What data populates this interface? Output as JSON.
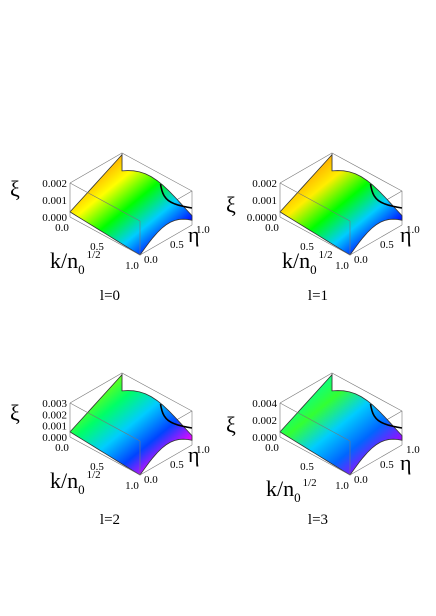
{
  "chart_data": [
    {
      "type": "surface3d",
      "panel_label": "l=0",
      "xlabel_main": "k/n",
      "xlabel_sub": "0",
      "xlabel_sup": "1/2",
      "ylabel": "η",
      "zlabel": "ξ",
      "x_ticks": [
        "0.0",
        "0.5",
        "1.0"
      ],
      "y_ticks": [
        "0.0",
        "0.5",
        "1.0"
      ],
      "z_ticks": [
        "0.000",
        "0.001",
        "0.002"
      ],
      "xlim": [
        0,
        1
      ],
      "ylim": [
        0,
        1
      ],
      "zlim": [
        0,
        0.002
      ],
      "colors": [
        "#ff0000",
        "#ff9900",
        "#ffff00",
        "#00ff00",
        "#00ccff",
        "#0000ff",
        "#ff00ff"
      ]
    },
    {
      "type": "surface3d",
      "panel_label": "l=1",
      "xlabel_main": "k/n",
      "xlabel_sub": "0",
      "xlabel_sup": "1/2",
      "ylabel": "η",
      "zlabel": "ξ",
      "x_ticks": [
        "0.0",
        "0.5",
        "1.0"
      ],
      "y_ticks": [
        "0.0",
        "0.5",
        "1.0"
      ],
      "z_ticks": [
        "0.0000",
        "0.001",
        "0.002"
      ],
      "xlim": [
        0,
        1
      ],
      "ylim": [
        0,
        1
      ],
      "zlim": [
        0,
        0.002
      ],
      "colors": [
        "#ff2200",
        "#ff9900",
        "#ffee00",
        "#00ff00",
        "#00ccff",
        "#0000ff",
        "#ff00ff"
      ]
    },
    {
      "type": "surface3d",
      "panel_label": "l=2",
      "xlabel_main": "k/n",
      "xlabel_sub": "0",
      "xlabel_sup": "1/2",
      "ylabel": "η",
      "zlabel": "ξ",
      "x_ticks": [
        "0.0",
        "0.5",
        "1.0"
      ],
      "y_ticks": [
        "0.0",
        "0.5",
        "1.0"
      ],
      "z_ticks": [
        "0.000",
        "0.001",
        "0.002",
        "0.003"
      ],
      "xlim": [
        0,
        1
      ],
      "ylim": [
        0,
        1
      ],
      "zlim": [
        0,
        0.003
      ],
      "colors": [
        "#ffff00",
        "#88ff00",
        "#00ff66",
        "#00ccff",
        "#0044ff",
        "#ff00ff",
        "#ff0000"
      ]
    },
    {
      "type": "surface3d",
      "panel_label": "l=3",
      "xlabel_main": "k/n",
      "xlabel_sub": "0",
      "xlabel_sup": "1/2",
      "ylabel": "η",
      "zlabel": "ξ",
      "x_ticks": [
        "0.0",
        "0.5",
        "1.0"
      ],
      "y_ticks": [
        "0.0",
        "0.5",
        "1.0"
      ],
      "z_ticks": [
        "0.000",
        "0.002",
        "0.004"
      ],
      "xlim": [
        0,
        1
      ],
      "ylim": [
        0,
        1
      ],
      "zlim": [
        0,
        0.004
      ],
      "colors": [
        "#00ffff",
        "#00ff99",
        "#33ff33",
        "#00ccff",
        "#0066ff",
        "#aa00ff",
        "#ff00cc"
      ]
    }
  ]
}
